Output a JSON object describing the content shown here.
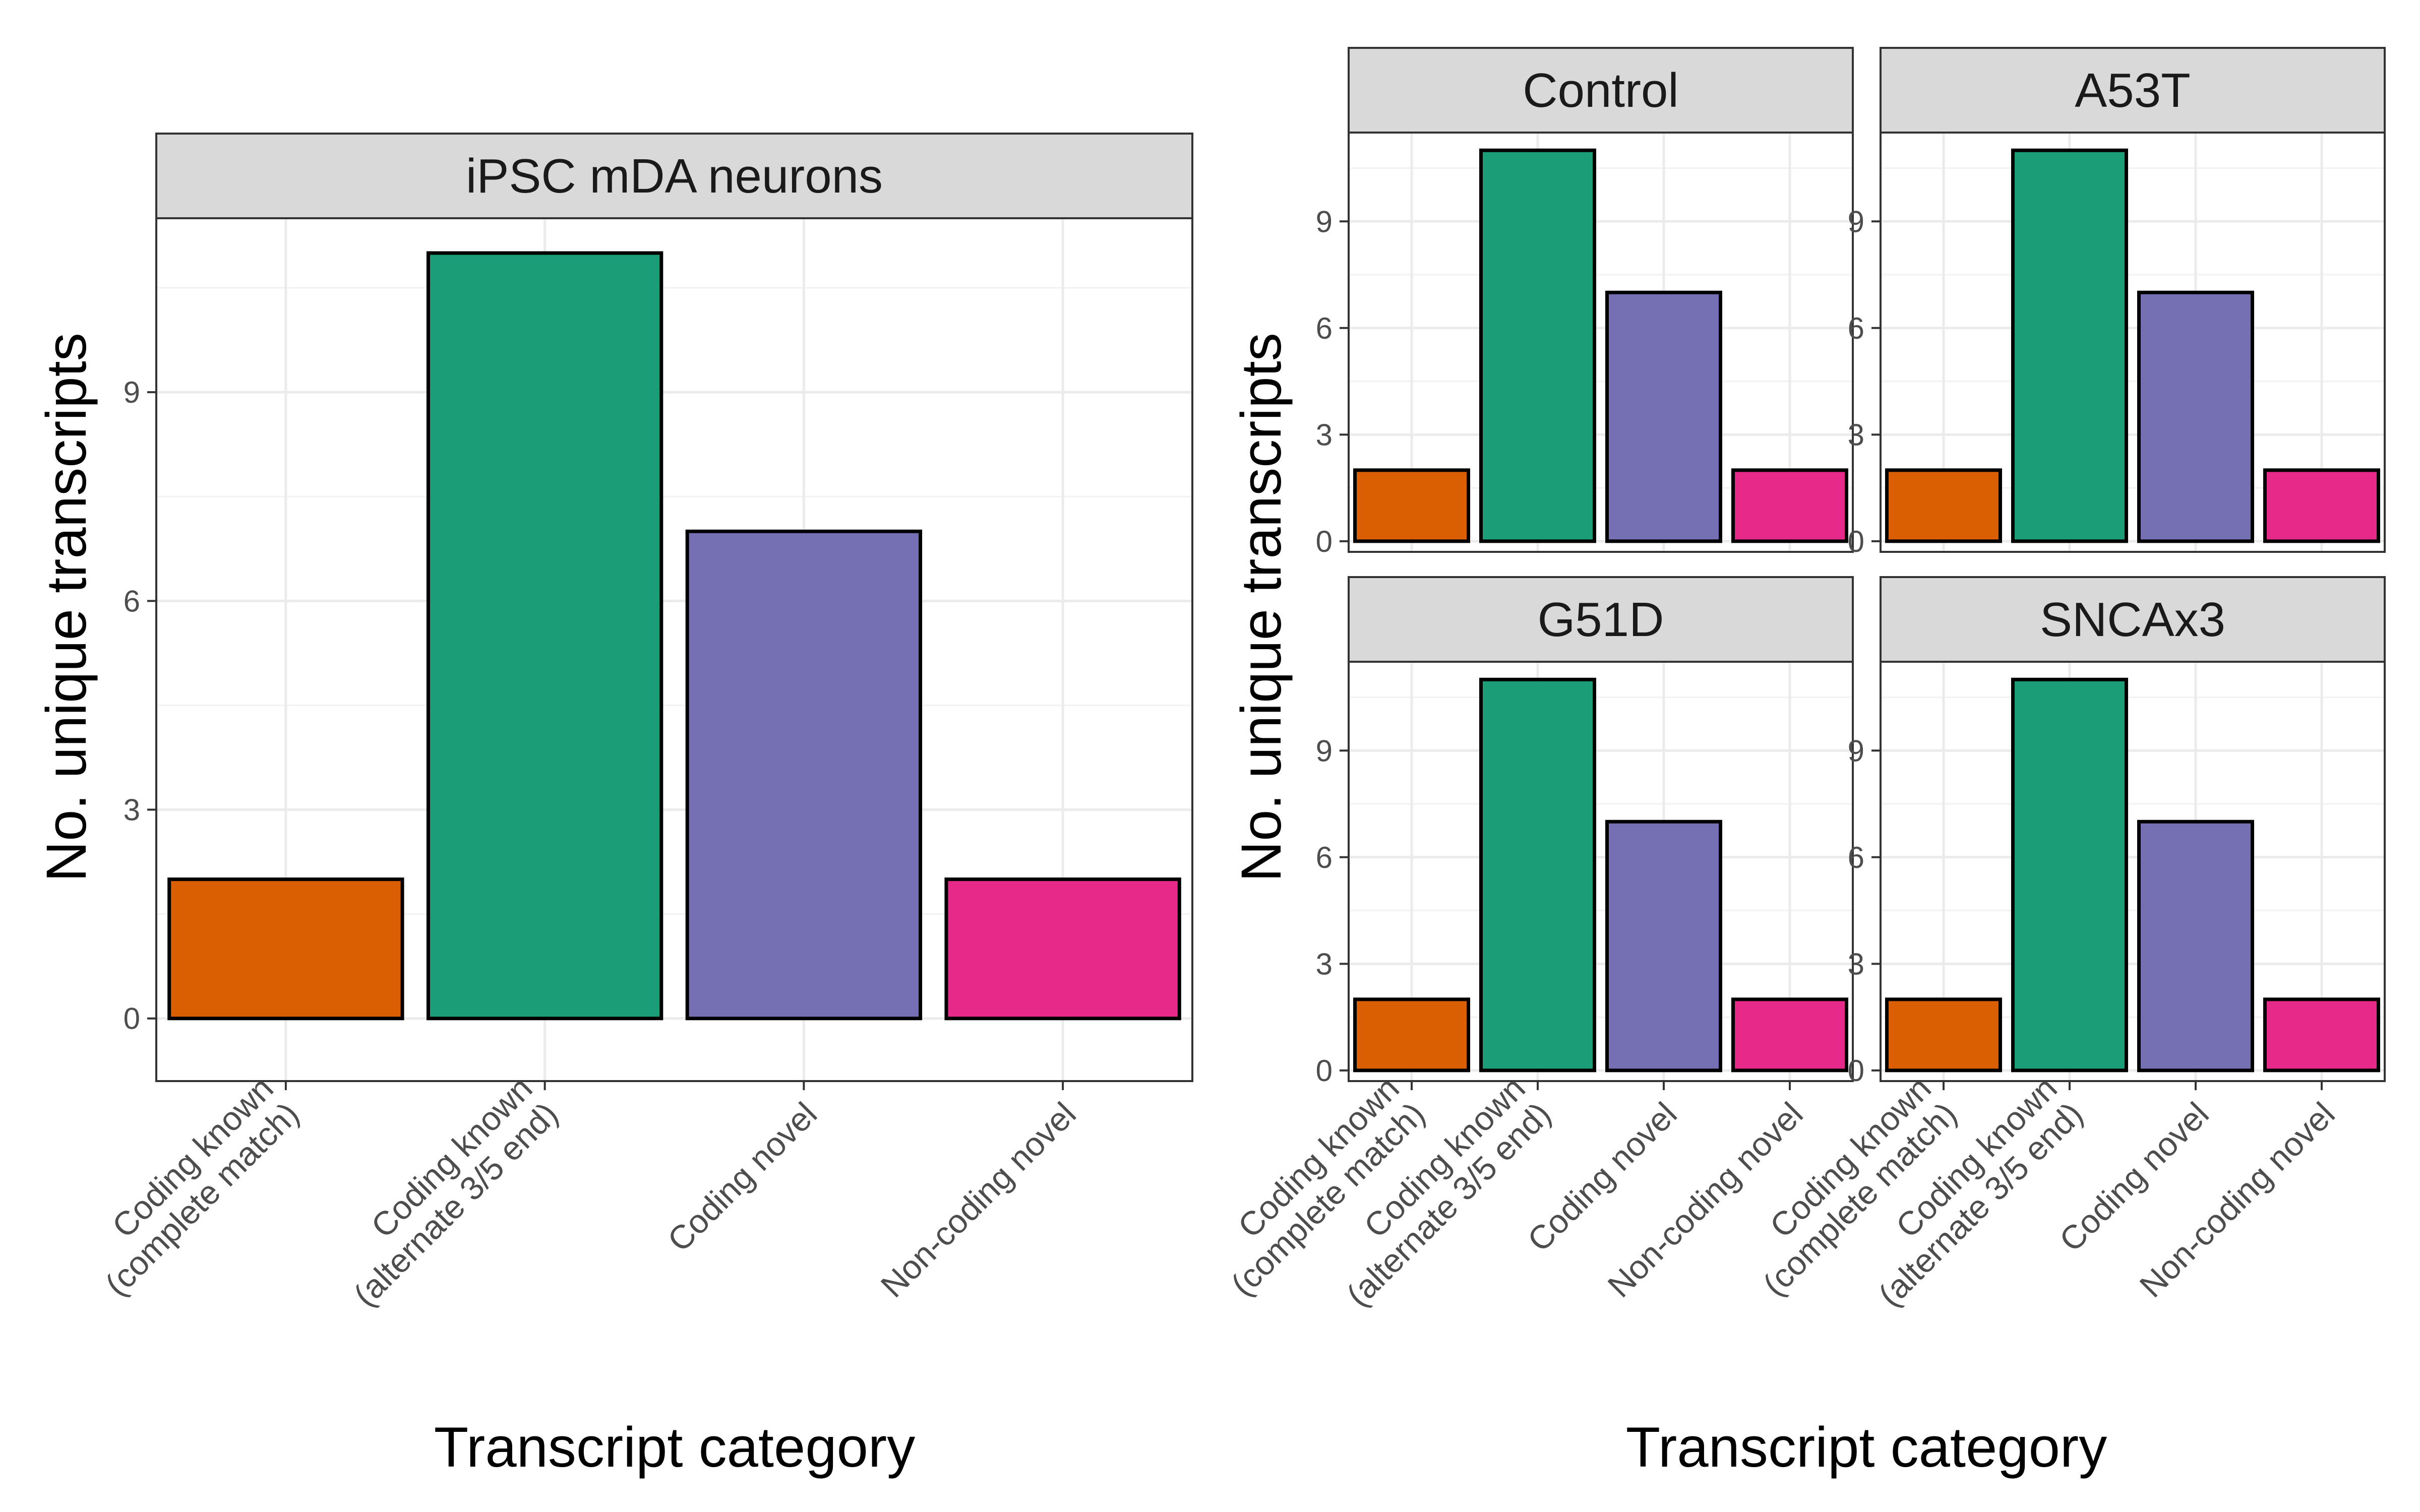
{
  "colors": {
    "coding_known_complete": "#D95F02",
    "coding_known_alternate": "#1B9E77",
    "coding_novel": "#7570B3",
    "non_coding_novel": "#E7298A",
    "strip_fill": "#D9D9D9",
    "panel_border": "#333333",
    "grid": "#EBEBEB"
  },
  "chart_data": [
    {
      "type": "bar",
      "title": "",
      "xlabel": "Transcript category",
      "ylabel": "No. unique transcripts",
      "categories": [
        [
          "Coding known",
          "(complete match)"
        ],
        [
          "Coding known",
          "(alternate 3/5 end)"
        ],
        [
          "Coding novel"
        ],
        [
          "Non-coding novel"
        ]
      ],
      "ylim": [
        -0.9,
        11.5
      ],
      "yticks": [
        "0",
        "3",
        "6",
        "9"
      ],
      "grid": true,
      "legend": "none",
      "facets": [
        {
          "label": "iPSC mDA neurons",
          "values": [
            2,
            11,
            7,
            2
          ]
        }
      ]
    },
    {
      "type": "bar",
      "title": "",
      "xlabel": "Transcript category",
      "ylabel": "No. unique transcripts",
      "categories": [
        [
          "Coding known",
          "(complete match)"
        ],
        [
          "Coding known",
          "(alternate 3/5 end)"
        ],
        [
          "Coding novel"
        ],
        [
          "Non-coding novel"
        ]
      ],
      "ylim": [
        -0.3,
        11.5
      ],
      "yticks": [
        "0",
        "3",
        "6",
        "9"
      ],
      "grid": true,
      "legend": "none",
      "facets": [
        {
          "label": "Control",
          "values": [
            2,
            11,
            7,
            2
          ]
        },
        {
          "label": "A53T",
          "values": [
            2,
            11,
            7,
            2
          ]
        },
        {
          "label": "G51D",
          "values": [
            2,
            11,
            7,
            2
          ]
        },
        {
          "label": "SNCAx3",
          "values": [
            2,
            11,
            7,
            2
          ]
        }
      ]
    }
  ]
}
